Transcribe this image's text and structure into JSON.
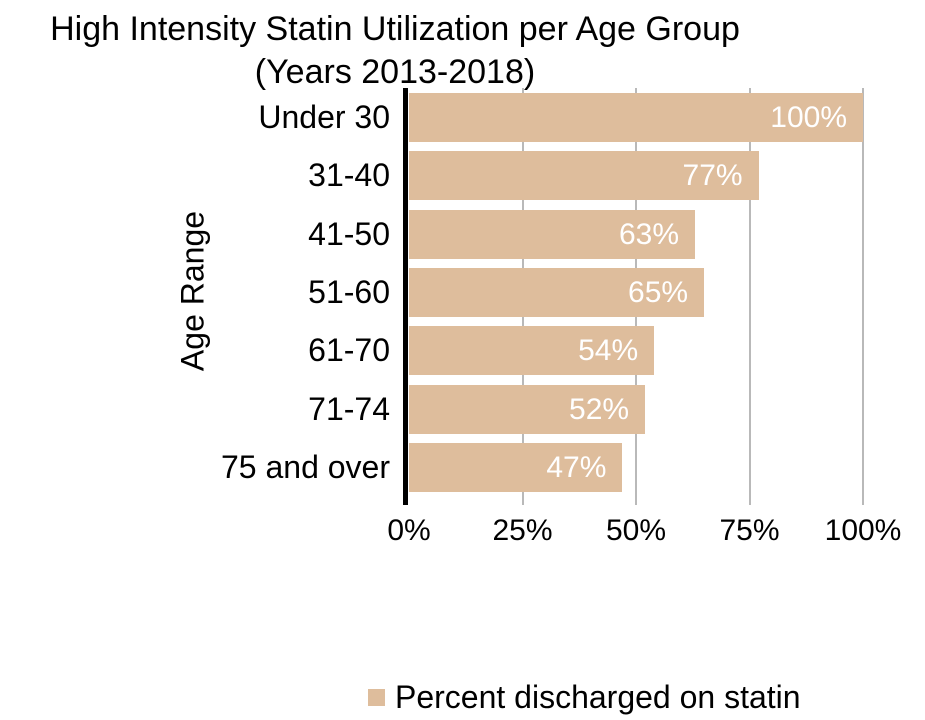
{
  "title": {
    "line1": "High Intensity Statin Utilization per Age Group",
    "line2": "(Years 2013-2018)"
  },
  "chart_data": {
    "type": "bar",
    "orientation": "horizontal",
    "title": "High Intensity Statin Utilization per Age Group (Years 2013-2018)",
    "categories": [
      "Under 30",
      "31-40",
      "41-50",
      "51-60",
      "61-70",
      "71-74",
      "75 and over"
    ],
    "values": [
      100,
      77,
      63,
      65,
      54,
      52,
      47
    ],
    "value_labels": [
      "100%",
      "77%",
      "63%",
      "65%",
      "54%",
      "52%",
      "47%"
    ],
    "xlabel": "",
    "ylabel": "Age Range",
    "xlim": [
      0,
      100
    ],
    "x_ticks": [
      "0%",
      "25%",
      "50%",
      "75%",
      "100%"
    ],
    "x_tick_values": [
      0,
      25,
      50,
      75,
      100
    ],
    "grid": true,
    "legend_position": "bottom",
    "series_name": "Percent discharged on statin",
    "colors": {
      "bar": "#debd9c",
      "gridline": "#b9b9b9",
      "axis": "#000000",
      "value_label": "#ffffff",
      "text": "#000000"
    }
  },
  "y_axis_title": "Age Range",
  "legend": {
    "label": "Percent discharged on statin",
    "swatch_color": "#debd9c"
  }
}
